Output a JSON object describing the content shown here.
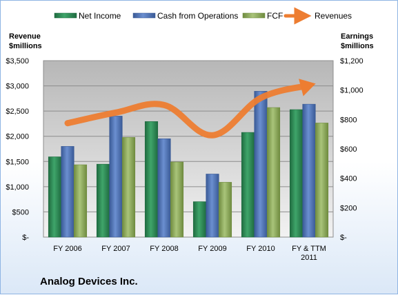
{
  "chart_data": {
    "type": "bar",
    "title": "Analog Devices Inc.",
    "categories": [
      "FY 2006",
      "FY 2007",
      "FY 2008",
      "FY 2009",
      "FY 2010",
      "FY & TTM 2011"
    ],
    "left_axis": {
      "label_line1": "Revenue",
      "label_line2": "$millions",
      "ylim": [
        0,
        3500
      ],
      "ticks": [
        0,
        500,
        1000,
        1500,
        2000,
        2500,
        3000,
        3500
      ],
      "tick_labels": [
        "$-",
        "$500",
        "$1,000",
        "$1,500",
        "$2,000",
        "$2,500",
        "$3,000",
        "$3,500"
      ]
    },
    "right_axis": {
      "label_line1": "Earnings",
      "label_line2": "$millions",
      "ylim": [
        0,
        1200
      ],
      "ticks": [
        0,
        200,
        400,
        600,
        800,
        1000,
        1200
      ],
      "tick_labels": [
        "$-",
        "$200",
        "$400",
        "$600",
        "$800",
        "$1,000",
        "$1,200"
      ]
    },
    "series": [
      {
        "name": "Net Income",
        "type": "bar",
        "axis": "right",
        "color": "#2e8b57",
        "values": [
          546,
          496,
          786,
          241,
          712,
          867
        ]
      },
      {
        "name": "Cash from Operations",
        "type": "bar",
        "axis": "right",
        "color": "#4f74b8",
        "values": [
          617,
          823,
          669,
          429,
          992,
          904
        ]
      },
      {
        "name": "FCF",
        "type": "bar",
        "axis": "right",
        "color": "#8fad5c",
        "values": [
          492,
          678,
          511,
          373,
          881,
          776
        ]
      },
      {
        "name": "Revenues",
        "type": "line",
        "axis": "left",
        "color": "#ed7d31",
        "values": [
          2260,
          2470,
          2620,
          2020,
          2760,
          3010
        ]
      }
    ],
    "grid": true,
    "legend_position": "top"
  }
}
